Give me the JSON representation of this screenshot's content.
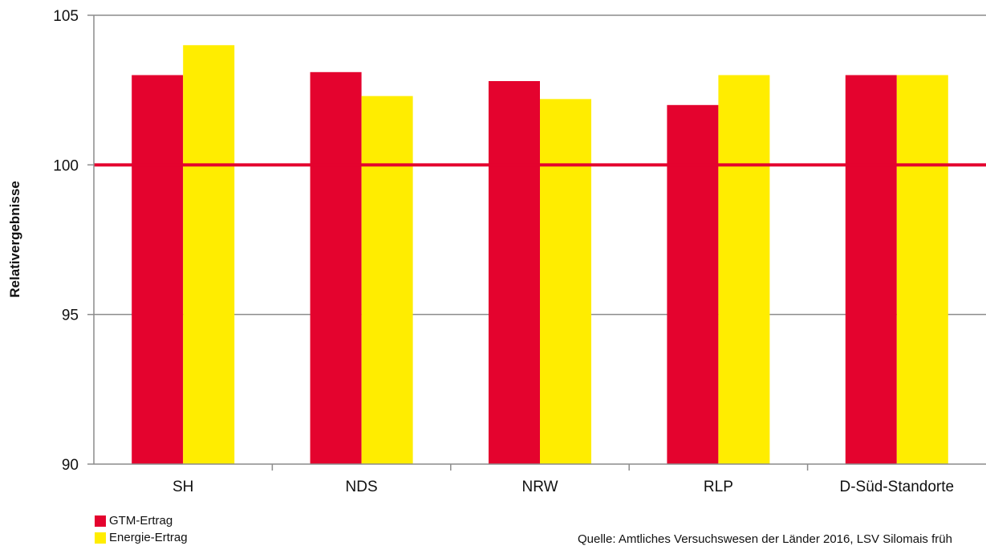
{
  "chart_data": {
    "type": "bar",
    "categories": [
      "SH",
      "NDS",
      "NRW",
      "RLP",
      "D-Süd-Standorte"
    ],
    "series": [
      {
        "name": "GTM-Ertrag",
        "color": "#e4032e",
        "values": [
          103.0,
          103.1,
          102.8,
          102.0,
          103.0
        ]
      },
      {
        "name": "Energie-Ertrag",
        "color": "#ffed00",
        "values": [
          104.0,
          102.3,
          102.2,
          103.0,
          103.0
        ]
      }
    ],
    "ylabel": "Relativergebnisse",
    "xlabel": "",
    "ylim": [
      90,
      105
    ],
    "yticks": [
      90,
      95,
      100,
      105
    ],
    "reference_line": {
      "value": 100,
      "color": "#e4032e"
    },
    "grid": true,
    "legend_position": "bottom-left",
    "source_note": "Quelle: Amtliches Versuchswesen der Länder 2016, LSV Silomais früh"
  }
}
